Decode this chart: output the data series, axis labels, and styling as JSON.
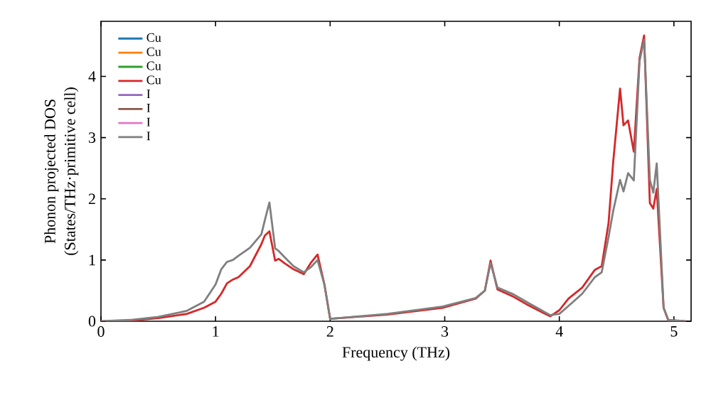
{
  "chart_data": {
    "type": "line",
    "xlabel": "Frequency (THz)",
    "ylabel": "Phonon projected DOS\n(States/THz·primitive cell)",
    "xlim": [
      0,
      5.15
    ],
    "ylim": [
      0,
      4.9
    ],
    "xticks": [
      0,
      1,
      2,
      3,
      4,
      5
    ],
    "yticks": [
      0,
      1,
      2,
      3,
      4
    ],
    "legend": "top left",
    "x": [
      0,
      0.25,
      0.5,
      0.75,
      0.9,
      1.0,
      1.05,
      1.1,
      1.15,
      1.2,
      1.3,
      1.4,
      1.43,
      1.47,
      1.52,
      1.55,
      1.6,
      1.68,
      1.77,
      1.83,
      1.89,
      1.95,
      2.0,
      2.5,
      2.98,
      3.27,
      3.35,
      3.4,
      3.46,
      3.6,
      3.73,
      3.92,
      4.0,
      4.08,
      4.2,
      4.31,
      4.37,
      4.43,
      4.47,
      4.53,
      4.56,
      4.6,
      4.65,
      4.7,
      4.74,
      4.79,
      4.82,
      4.85,
      4.91,
      4.95,
      5.1
    ],
    "series": [
      {
        "name": "Cu",
        "color": "#1f77b4",
        "values": [
          null,
          null,
          null,
          null,
          null,
          null,
          null,
          null,
          null,
          null,
          null,
          null,
          null,
          null,
          null,
          null,
          null,
          null,
          null,
          null,
          null,
          null,
          null,
          null,
          null,
          null,
          null,
          null,
          null,
          null,
          null,
          null,
          null,
          null,
          null,
          null,
          null,
          null,
          null,
          null,
          null,
          null,
          null,
          null,
          null,
          null,
          null,
          null,
          null,
          null,
          null
        ]
      },
      {
        "name": "Cu",
        "color": "#ff7f0e",
        "values": [
          null,
          null,
          null,
          null,
          null,
          null,
          null,
          null,
          null,
          null,
          null,
          null,
          null,
          null,
          null,
          null,
          null,
          null,
          null,
          null,
          null,
          null,
          null,
          null,
          null,
          null,
          null,
          null,
          null,
          null,
          null,
          null,
          null,
          null,
          null,
          null,
          null,
          null,
          null,
          null,
          null,
          null,
          null,
          null,
          null,
          null,
          null,
          null,
          null,
          null,
          null
        ]
      },
      {
        "name": "Cu",
        "color": "#2ca02c",
        "values": [
          null,
          null,
          null,
          null,
          null,
          null,
          null,
          null,
          null,
          null,
          null,
          null,
          null,
          null,
          null,
          null,
          null,
          null,
          null,
          null,
          null,
          null,
          null,
          null,
          null,
          null,
          null,
          null,
          null,
          null,
          null,
          null,
          null,
          null,
          null,
          null,
          null,
          null,
          null,
          null,
          null,
          null,
          null,
          null,
          null,
          null,
          null,
          null,
          null,
          null,
          null
        ]
      },
      {
        "name": "Cu",
        "color": "#d62728",
        "values": [
          0,
          0.01,
          0.05,
          0.12,
          0.22,
          0.32,
          0.45,
          0.62,
          0.68,
          0.72,
          0.9,
          1.26,
          1.4,
          1.47,
          0.99,
          1.02,
          0.95,
          0.85,
          0.77,
          0.95,
          1.09,
          0.6,
          0.04,
          0.11,
          0.22,
          0.37,
          0.5,
          0.99,
          0.52,
          0.4,
          0.26,
          0.08,
          0.18,
          0.37,
          0.55,
          0.84,
          0.9,
          1.61,
          2.6,
          3.8,
          3.2,
          3.28,
          2.77,
          4.3,
          4.67,
          1.93,
          1.84,
          2.16,
          0.22,
          0.02,
          0.0
        ]
      },
      {
        "name": "I",
        "color": "#9467bd",
        "values": [
          null,
          null,
          null,
          null,
          null,
          null,
          null,
          null,
          null,
          null,
          null,
          null,
          null,
          null,
          null,
          null,
          null,
          null,
          null,
          null,
          null,
          null,
          null,
          null,
          null,
          null,
          null,
          null,
          null,
          null,
          null,
          null,
          null,
          null,
          null,
          null,
          null,
          null,
          null,
          null,
          null,
          null,
          null,
          null,
          null,
          null,
          null,
          null,
          null,
          null,
          null
        ]
      },
      {
        "name": "I",
        "color": "#8c564b",
        "values": [
          null,
          null,
          null,
          null,
          null,
          null,
          null,
          null,
          null,
          null,
          null,
          null,
          null,
          null,
          null,
          null,
          null,
          null,
          null,
          null,
          null,
          null,
          null,
          null,
          null,
          null,
          null,
          null,
          null,
          null,
          null,
          null,
          null,
          null,
          null,
          null,
          null,
          null,
          null,
          null,
          null,
          null,
          null,
          null,
          null,
          null,
          null,
          null,
          null,
          null,
          null
        ]
      },
      {
        "name": "I",
        "color": "#e377c2",
        "values": [
          null,
          null,
          null,
          null,
          null,
          null,
          null,
          null,
          null,
          null,
          null,
          null,
          null,
          null,
          null,
          null,
          null,
          null,
          null,
          null,
          null,
          null,
          null,
          null,
          null,
          null,
          null,
          null,
          null,
          null,
          null,
          null,
          null,
          null,
          null,
          null,
          null,
          null,
          null,
          null,
          null,
          null,
          null,
          null,
          null,
          null,
          null,
          null,
          null,
          null,
          null
        ]
      },
      {
        "name": "I",
        "color": "#7f7f7f",
        "values": [
          0,
          0.02,
          0.07,
          0.17,
          0.32,
          0.6,
          0.85,
          0.97,
          1.0,
          1.07,
          1.2,
          1.42,
          1.65,
          1.94,
          1.19,
          1.15,
          1.05,
          0.9,
          0.8,
          0.88,
          1.0,
          0.6,
          0.04,
          0.12,
          0.24,
          0.38,
          0.5,
          0.95,
          0.55,
          0.44,
          0.3,
          0.1,
          0.12,
          0.25,
          0.45,
          0.72,
          0.8,
          1.38,
          1.8,
          2.31,
          2.12,
          2.42,
          2.3,
          4.25,
          4.6,
          2.31,
          2.1,
          2.58,
          0.22,
          0.02,
          0.0
        ]
      }
    ]
  }
}
